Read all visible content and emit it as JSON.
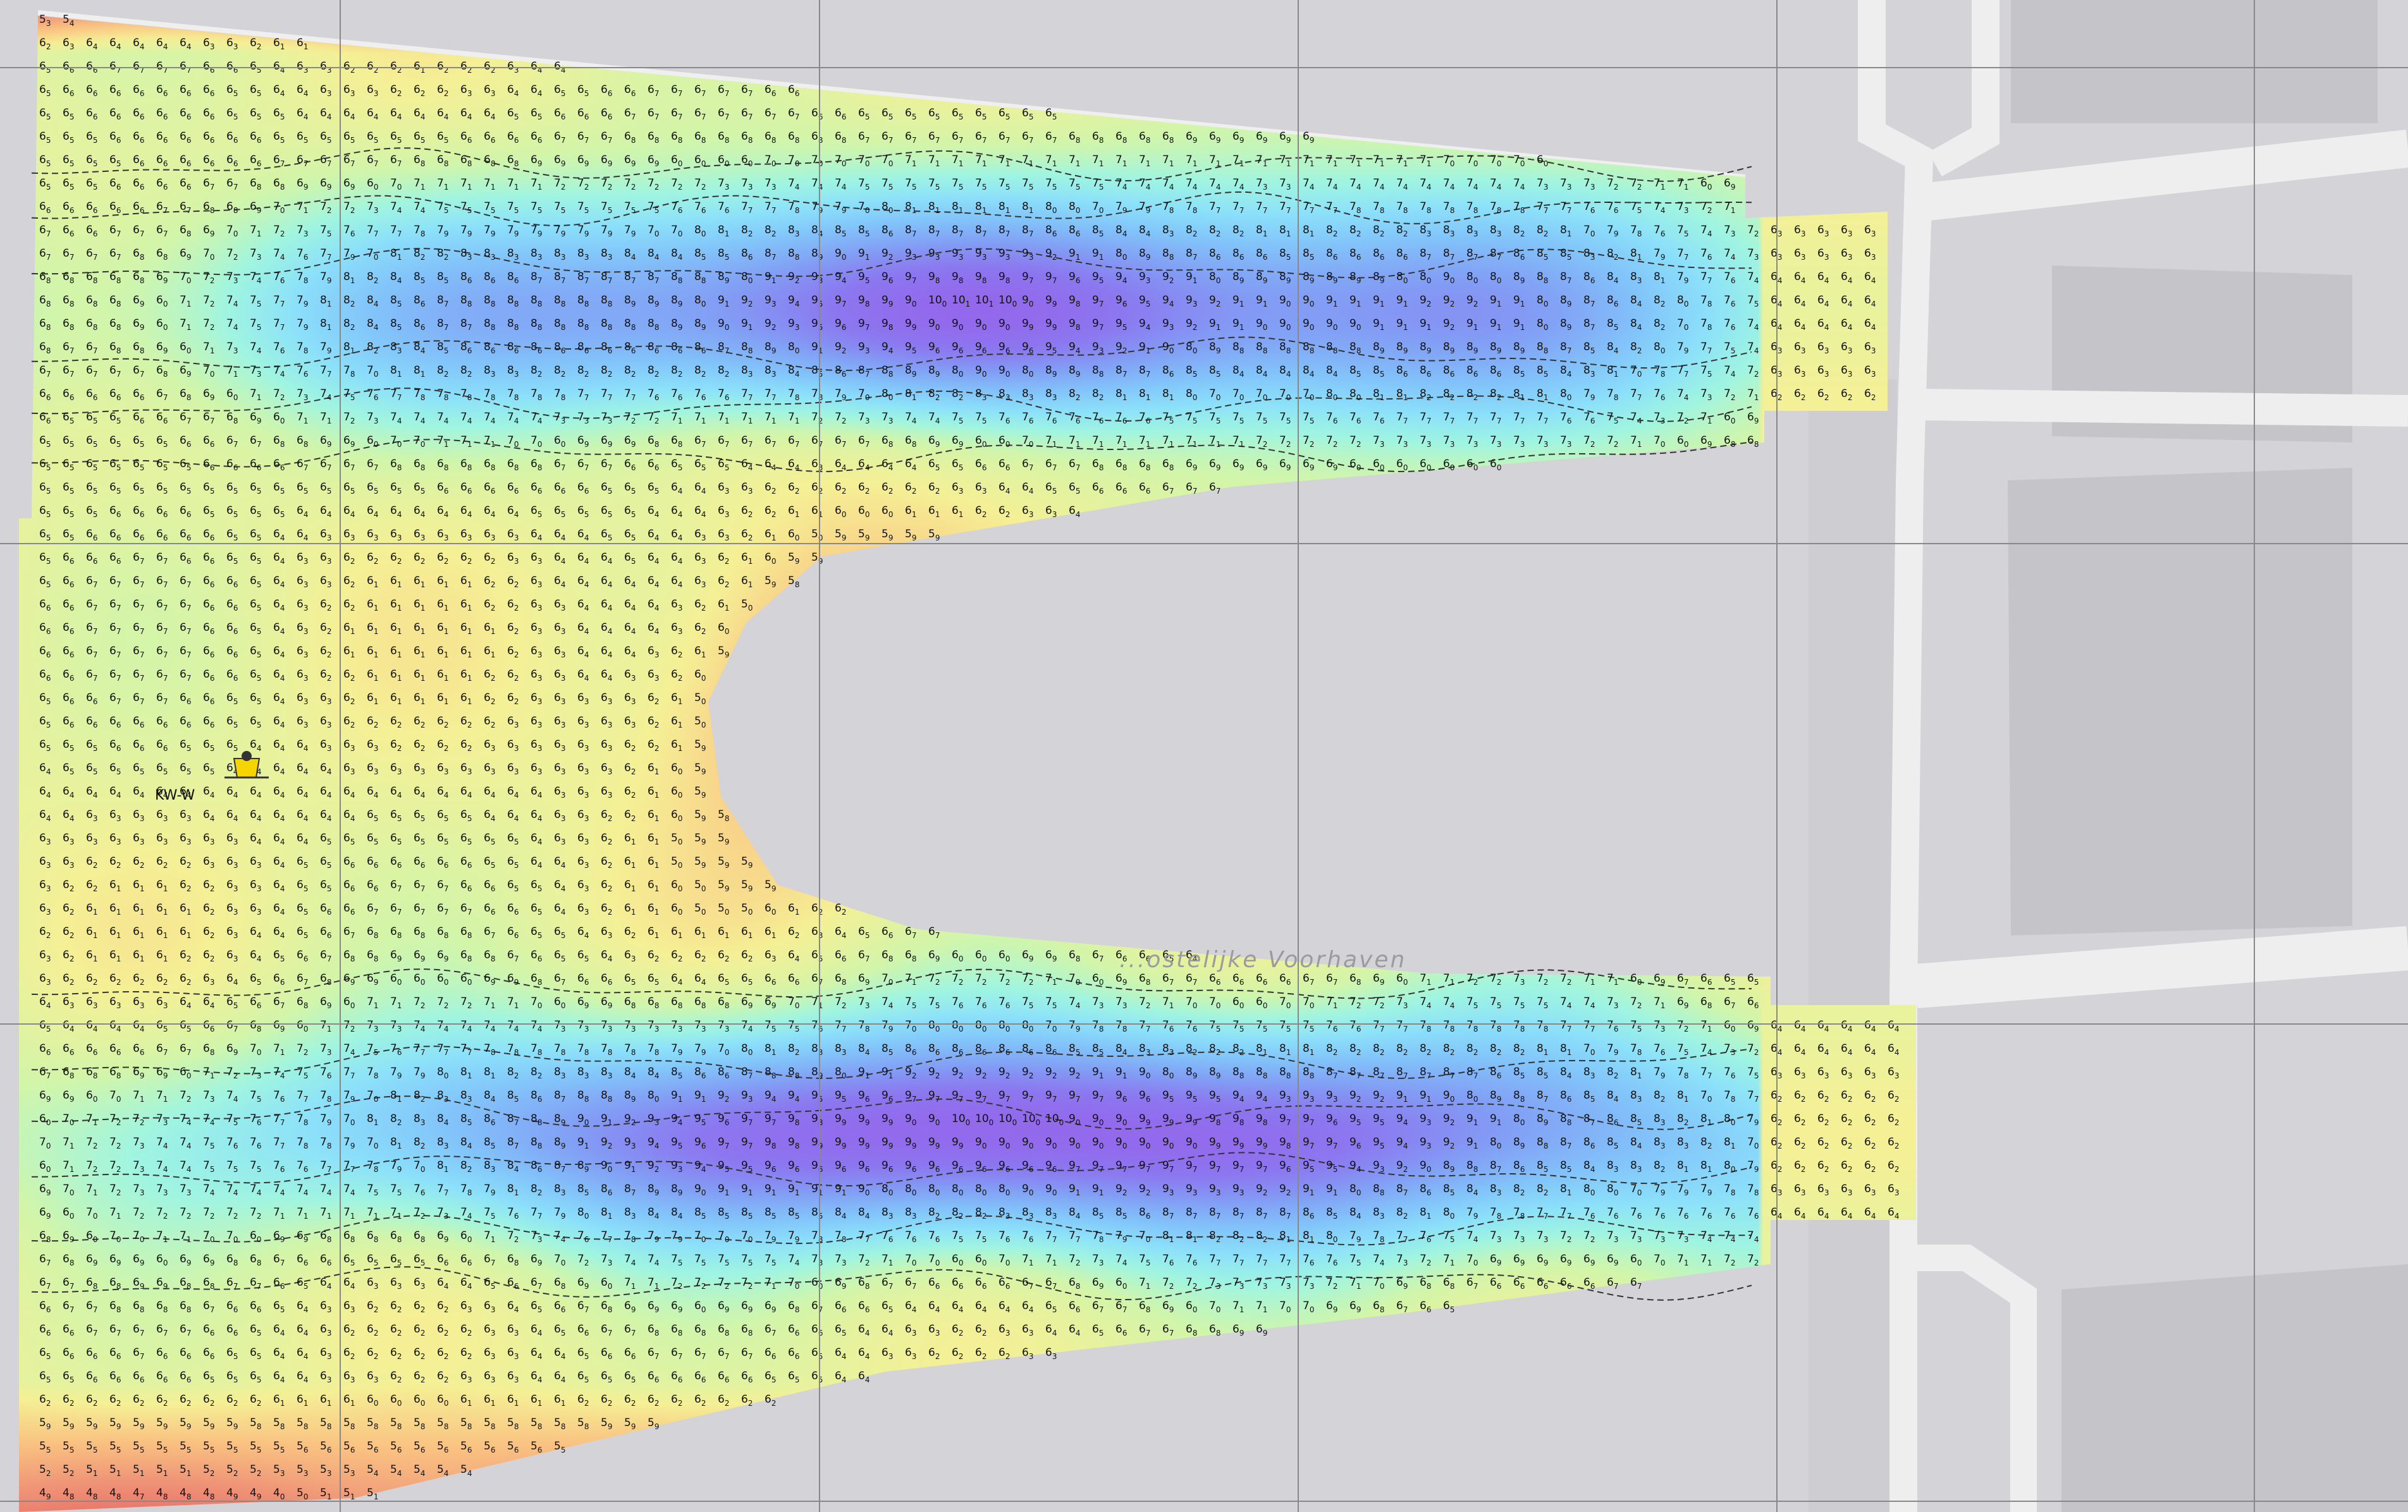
{
  "map": {
    "water_name": "...ostelijke Voorhaven",
    "station_label": "KW-W",
    "depth_range": [
      4.2,
      10.2
    ],
    "colors": {
      "background": "#d3d3d8",
      "building": "#c4c4c9",
      "road": "#eeeeef",
      "grid": "#8a8a8a",
      "contour": "#333333",
      "marker": "#f5d400"
    },
    "icons": [
      "station-marker-icon"
    ]
  }
}
